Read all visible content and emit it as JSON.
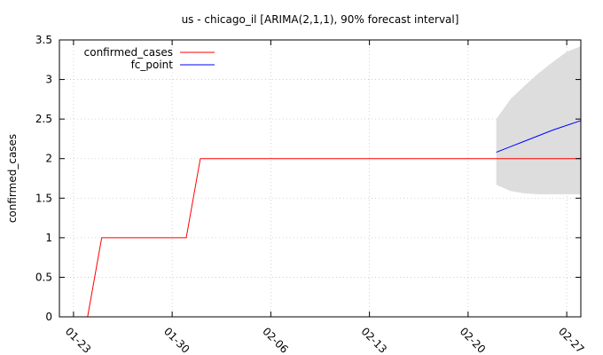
{
  "chart_data": {
    "type": "line",
    "title": "us - chicago_il [ARIMA(2,1,1), 90% forecast interval]",
    "xlabel": "",
    "ylabel": "confirmed_cases",
    "ylim": [
      0,
      3.5
    ],
    "xlim": [
      "2020-01-22",
      "2020-02-28"
    ],
    "x_ticks": [
      "01-23",
      "01-30",
      "02-06",
      "02-13",
      "02-20",
      "02-27"
    ],
    "y_ticks": [
      "0",
      "0.5",
      "1",
      "1.5",
      "2",
      "2.5",
      "3",
      "3.5"
    ],
    "grid": true,
    "legend_position": "top-left",
    "series": [
      {
        "name": "confirmed_cases",
        "color": "#ff0000",
        "points": [
          [
            "2020-01-24",
            0
          ],
          [
            "2020-01-25",
            1
          ],
          [
            "2020-01-31",
            1
          ],
          [
            "2020-02-01",
            2
          ],
          [
            "2020-02-28",
            2
          ]
        ]
      },
      {
        "name": "fc_point",
        "color": "#0000ff",
        "points": [
          [
            "2020-02-22",
            2.08
          ],
          [
            "2020-02-23",
            2.15
          ],
          [
            "2020-02-24",
            2.22
          ],
          [
            "2020-02-25",
            2.29
          ],
          [
            "2020-02-26",
            2.36
          ],
          [
            "2020-02-27",
            2.42
          ],
          [
            "2020-02-28",
            2.48
          ]
        ]
      }
    ],
    "interval": {
      "color": "#dddddd",
      "x": [
        "2020-02-22",
        "2020-02-23",
        "2020-02-24",
        "2020-02-25",
        "2020-02-26",
        "2020-02-27",
        "2020-02-28"
      ],
      "lower": [
        1.67,
        1.59,
        1.56,
        1.55,
        1.55,
        1.55,
        1.55
      ],
      "upper": [
        2.5,
        2.75,
        2.92,
        3.08,
        3.22,
        3.35,
        3.42
      ]
    }
  }
}
